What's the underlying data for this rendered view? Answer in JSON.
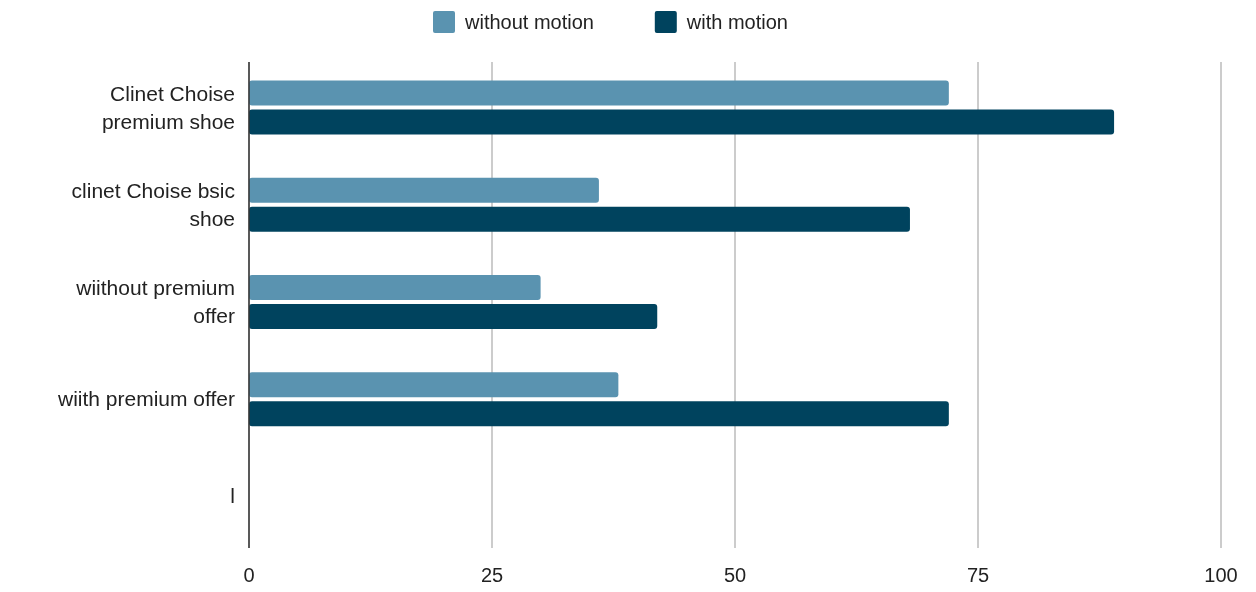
{
  "chart_data": {
    "type": "bar",
    "orientation": "horizontal",
    "categories": [
      "Clinet Choise premium shoe",
      "clinet Choise bsic shoe",
      "wiithout premium offer",
      "wiith premium offer",
      "l"
    ],
    "series": [
      {
        "name": "without motion",
        "color": "#5a93b0",
        "values": [
          72,
          36,
          30,
          38,
          null
        ]
      },
      {
        "name": "with motion",
        "color": "#00435e",
        "values": [
          89,
          68,
          42,
          72,
          null
        ]
      }
    ],
    "xlim": [
      0,
      100
    ],
    "xticks": [
      0,
      25,
      50,
      75,
      100
    ],
    "grid": "x",
    "legend": "top"
  }
}
